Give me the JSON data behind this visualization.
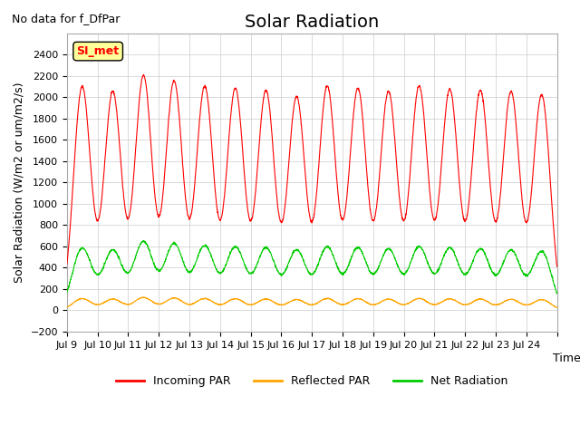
{
  "title": "Solar Radiation",
  "subtitle": "No data for f_DfPar",
  "xlabel": "Time",
  "ylabel": "Solar Radiation (W/m2 or um/m2/s)",
  "ylim": [
    -200,
    2600
  ],
  "yticks": [
    -200,
    0,
    200,
    400,
    600,
    800,
    1000,
    1200,
    1400,
    1600,
    1800,
    2000,
    2200,
    2400
  ],
  "xtick_positions": [
    0,
    1,
    2,
    3,
    4,
    5,
    6,
    7,
    8,
    9,
    10,
    11,
    12,
    13,
    14,
    15,
    16
  ],
  "xtick_labels": [
    "Jul 9",
    "Jul 10",
    "Jul 11",
    "Jul 12",
    "Jul 13",
    "Jul 14",
    "Jul 15",
    "Jul 16",
    "Jul 17",
    "Jul 18",
    "Jul 19",
    "Jul 20",
    "Jul 21",
    "Jul 22",
    "Jul 23",
    "Jul 24",
    ""
  ],
  "legend_labels": [
    "Incoming PAR",
    "Reflected PAR",
    "Net Radiation"
  ],
  "color_incoming": "#ff0000",
  "color_reflected": "#ffa500",
  "color_net": "#00cc00",
  "background_color": "#ffffff",
  "grid_color": "#cccccc",
  "SI_met_label": "SI_met",
  "SI_met_bg": "#ffff99",
  "n_days": 16,
  "incoming_peaks": [
    2100,
    2050,
    2200,
    2150,
    2100,
    2080,
    2060,
    2000,
    2100,
    2080,
    2050,
    2100,
    2070,
    2060,
    2050,
    2020
  ],
  "net_peaks": [
    580,
    560,
    640,
    620,
    600,
    590,
    580,
    560,
    590,
    580,
    570,
    590,
    580,
    570,
    560,
    550
  ],
  "ref_peaks": [
    110,
    105,
    120,
    115,
    110,
    108,
    105,
    100,
    110,
    108,
    105,
    110,
    107,
    105,
    103,
    100
  ],
  "title_fontsize": 14,
  "label_fontsize": 9,
  "tick_fontsize": 8
}
